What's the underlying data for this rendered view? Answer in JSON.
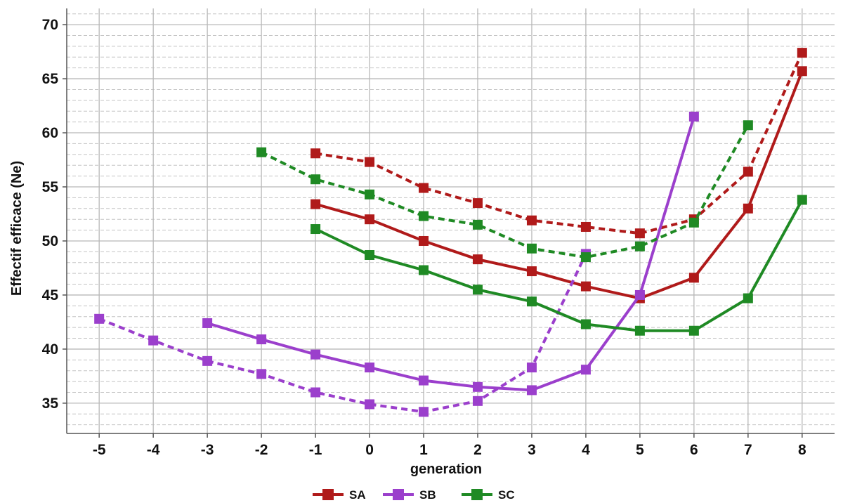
{
  "chart_data": {
    "type": "line",
    "xlabel": "generation",
    "ylabel": "Effectif efficace (Ne)",
    "xlim": [
      -5.6,
      8.6
    ],
    "ylim": [
      32.2,
      71.5
    ],
    "x_ticks": [
      -5,
      -4,
      -3,
      -2,
      -1,
      0,
      1,
      2,
      3,
      4,
      5,
      6,
      7,
      8
    ],
    "x_tick_labels": [
      "-5",
      "-4",
      "-3",
      "-2",
      "-1",
      "0",
      "1",
      "2",
      "3",
      "4",
      "5",
      "6",
      "7",
      "8"
    ],
    "y_ticks": [
      35,
      40,
      45,
      50,
      55,
      60,
      65,
      70
    ],
    "y_tick_labels": [
      "35",
      "40",
      "45",
      "50",
      "55",
      "60",
      "65",
      "70"
    ],
    "grid": true,
    "legend_position": "bottom-center",
    "legend": [
      {
        "name": "SA",
        "color": "#b01a1a"
      },
      {
        "name": "SB",
        "color": "#9b3fcc"
      },
      {
        "name": "SC",
        "color": "#1f8a24"
      }
    ],
    "series": [
      {
        "group": "SA",
        "style": "solid",
        "color": "#b01a1a",
        "x": [
          -1,
          0,
          1,
          2,
          3,
          4,
          5,
          6,
          7,
          8
        ],
        "y": [
          53.4,
          52.0,
          50.0,
          48.3,
          47.2,
          45.8,
          44.7,
          46.6,
          53.0,
          65.7
        ]
      },
      {
        "group": "SA",
        "style": "dashed",
        "color": "#b01a1a",
        "x": [
          -1,
          0,
          1,
          2,
          3,
          4,
          5,
          6,
          7,
          8
        ],
        "y": [
          58.1,
          57.3,
          54.9,
          53.5,
          51.9,
          51.3,
          50.7,
          52.0,
          56.4,
          67.4
        ]
      },
      {
        "group": "SB",
        "style": "solid",
        "color": "#9b3fcc",
        "x": [
          -3,
          -2,
          -1,
          0,
          1,
          2,
          3,
          4,
          5,
          6
        ],
        "y": [
          42.4,
          40.9,
          39.5,
          38.3,
          37.1,
          36.5,
          36.2,
          38.1,
          45.0,
          61.5
        ]
      },
      {
        "group": "SB",
        "style": "dashed",
        "color": "#9b3fcc",
        "x": [
          -5,
          -4,
          -3,
          -2,
          -1,
          0,
          1,
          2,
          3,
          4
        ],
        "y": [
          42.8,
          40.8,
          38.9,
          37.7,
          36.0,
          34.9,
          34.2,
          35.2,
          38.3,
          48.8
        ]
      },
      {
        "group": "SC",
        "style": "solid",
        "color": "#1f8a24",
        "x": [
          -1,
          0,
          1,
          2,
          3,
          4,
          5,
          6,
          7,
          8
        ],
        "y": [
          51.1,
          48.7,
          47.3,
          45.5,
          44.4,
          42.3,
          41.7,
          41.7,
          44.7,
          53.8
        ]
      },
      {
        "group": "SC",
        "style": "dashed",
        "color": "#1f8a24",
        "x": [
          -2,
          -1,
          0,
          1,
          2,
          3,
          4,
          5,
          6,
          7
        ],
        "y": [
          58.2,
          55.7,
          54.3,
          52.3,
          51.5,
          49.3,
          48.5,
          49.5,
          51.7,
          60.7
        ]
      }
    ]
  }
}
